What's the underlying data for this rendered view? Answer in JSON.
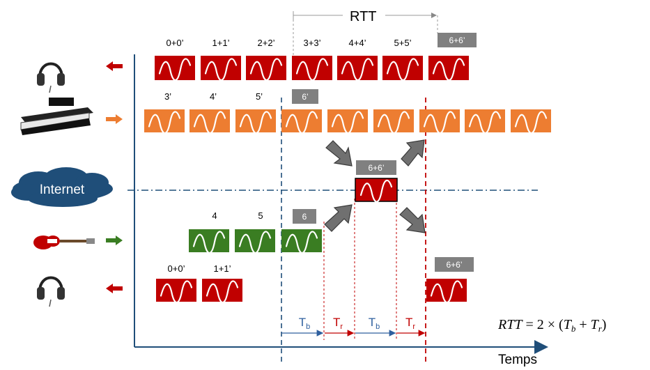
{
  "rtt_label": "RTT",
  "axis_label": "Temps",
  "internet_label": "Internet",
  "formula": {
    "lhs": "RTT",
    "eq": " = 2 × (",
    "t1": "T",
    "s1": "b",
    "plus": " + ",
    "t2": "T",
    "s2": "r",
    "close": ")"
  },
  "rows": {
    "top_headphones": {
      "labels": [
        "0+0’",
        "1+1’",
        "2+2’",
        "3+3’",
        "4+4’",
        "5+5’"
      ],
      "gray_label": "6+6’"
    },
    "piano": {
      "labels": [
        "3’",
        "4’",
        "5’"
      ],
      "gray_label": "6’"
    },
    "server": {
      "label": "6+6’"
    },
    "guitar": {
      "labels": [
        "4",
        "5"
      ],
      "gray_label": "6"
    },
    "bottom_headphones": {
      "labels": [
        "0+0’",
        "1+1’"
      ],
      "gray_label": "6+6’"
    }
  },
  "intervals": [
    {
      "main": "T",
      "sub": "b"
    },
    {
      "main": "T",
      "sub": "r"
    },
    {
      "main": "T",
      "sub": "b"
    },
    {
      "main": "T",
      "sub": "r"
    }
  ],
  "colors": {
    "red": "#c00000",
    "orange": "#ed7d31",
    "green": "#3a7d22",
    "gray": "#808080",
    "axis": "#1f4e79",
    "cloud": "#1f4e79",
    "interval_blue": "#2e5f9e",
    "interval_red": "#c00000"
  }
}
